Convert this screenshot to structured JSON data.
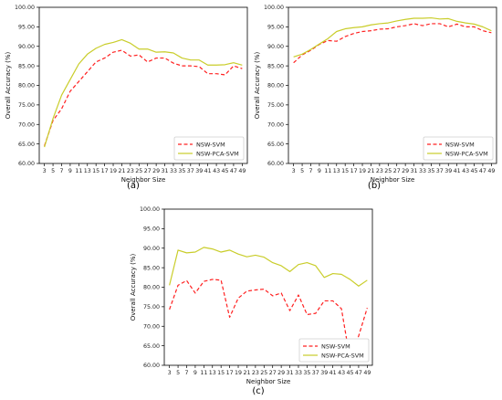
{
  "colors": {
    "nsw_svm": "#ff2020",
    "nsw_pca_svm": "#c9cd2a"
  },
  "chart_data": [
    {
      "type": "line",
      "caption": "(a)",
      "xlabel": "Neighbor Size",
      "ylabel": "Overall Accuracy (%)",
      "ylim": [
        60,
        100
      ],
      "yticks": [
        "60.00",
        "65.00",
        "70.00",
        "75.00",
        "80.00",
        "85.00",
        "90.00",
        "95.00",
        "100.00"
      ],
      "x": [
        3,
        5,
        7,
        9,
        11,
        13,
        15,
        17,
        19,
        21,
        23,
        25,
        27,
        29,
        31,
        33,
        35,
        37,
        39,
        41,
        43,
        45,
        47,
        49
      ],
      "legend_position": "bottom-right",
      "series": [
        {
          "name": "NSW-SVM",
          "style": "dashed",
          "color": "#ff2020",
          "values": [
            64.5,
            71,
            74,
            78.5,
            81,
            83.5,
            86,
            87,
            88.5,
            89,
            87.5,
            87.8,
            86,
            87,
            87,
            85.7,
            85,
            85,
            84.8,
            83,
            83,
            82.7,
            85,
            84.3
          ]
        },
        {
          "name": "NSW-PCA-SVM",
          "style": "solid",
          "color": "#c9cd2a",
          "values": [
            64.2,
            71.5,
            77.5,
            81.5,
            85.5,
            88,
            89.5,
            90.5,
            91,
            91.7,
            90.8,
            89.3,
            89.3,
            88.5,
            88.6,
            88.3,
            87,
            86.5,
            86.5,
            85.2,
            85.2,
            85.3,
            85.8,
            85.2
          ]
        }
      ]
    },
    {
      "type": "line",
      "caption": "(b)",
      "xlabel": "Neighbor Size",
      "ylabel": "Overall Accuracy (%)",
      "ylim": [
        60,
        100
      ],
      "yticks": [
        "60.00",
        "65.00",
        "70.00",
        "75.00",
        "80.00",
        "85.00",
        "90.00",
        "95.00",
        "100.00"
      ],
      "x": [
        3,
        5,
        7,
        9,
        11,
        13,
        15,
        17,
        19,
        21,
        23,
        25,
        27,
        29,
        31,
        33,
        35,
        37,
        39,
        41,
        43,
        45,
        47,
        49
      ],
      "legend_position": "bottom-right",
      "series": [
        {
          "name": "NSW-SVM",
          "style": "dashed",
          "color": "#ff2020",
          "values": [
            85.8,
            87.8,
            89,
            90.5,
            91.5,
            91.3,
            92.5,
            93.3,
            93.8,
            94,
            94.4,
            94.5,
            95,
            95.3,
            95.8,
            95.3,
            95.8,
            95.8,
            95,
            95.7,
            95,
            95,
            94,
            93.5
          ]
        },
        {
          "name": "NSW-PCA-SVM",
          "style": "solid",
          "color": "#c9cd2a",
          "values": [
            87.3,
            88,
            89.2,
            90.6,
            92,
            93.8,
            94.5,
            94.8,
            95,
            95.5,
            95.8,
            96,
            96.5,
            96.9,
            97.2,
            97.2,
            97.3,
            97,
            97.1,
            96.4,
            96,
            95.7,
            95,
            94
          ]
        }
      ]
    },
    {
      "type": "line",
      "caption": "(c)",
      "xlabel": "Neighbor Size",
      "ylabel": "Overall Accuracy (%)",
      "ylim": [
        60,
        100
      ],
      "yticks": [
        "60.00",
        "65.00",
        "70.00",
        "75.00",
        "80.00",
        "85.00",
        "90.00",
        "95.00",
        "100.00"
      ],
      "x": [
        3,
        5,
        7,
        9,
        11,
        13,
        15,
        17,
        19,
        21,
        23,
        25,
        27,
        29,
        31,
        33,
        35,
        37,
        39,
        41,
        43,
        45,
        47,
        49
      ],
      "legend_position": "bottom-right",
      "series": [
        {
          "name": "NSW-SVM",
          "style": "dashed",
          "color": "#ff2020",
          "values": [
            74.3,
            80.5,
            81.7,
            78.5,
            81.5,
            82,
            81.8,
            72.3,
            77.2,
            79,
            79.3,
            79.5,
            77.8,
            78.5,
            74,
            78,
            73,
            73.3,
            76.5,
            76.5,
            74.5,
            61.5,
            67.5,
            74.7
          ]
        },
        {
          "name": "NSW-PCA-SVM",
          "style": "solid",
          "color": "#c9cd2a",
          "values": [
            80.5,
            89.5,
            88.8,
            89,
            90.2,
            89.8,
            89,
            89.5,
            88.5,
            87.8,
            88.2,
            87.7,
            86.3,
            85.5,
            84,
            85.8,
            86.3,
            85.5,
            82.5,
            83.5,
            83.3,
            82,
            80.3,
            81.8
          ]
        }
      ]
    }
  ]
}
